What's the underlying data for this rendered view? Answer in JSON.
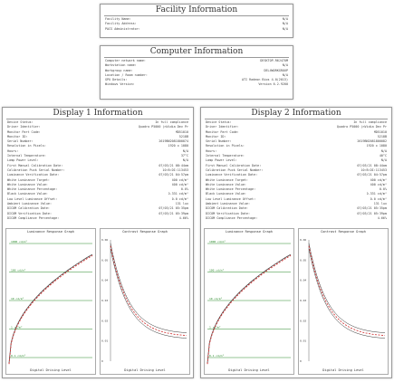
{
  "facility": {
    "title": "Facility Information",
    "rows": [
      {
        "label": "Facility Name:",
        "value": "N/A"
      },
      {
        "label": "Facility Address:",
        "value": "N/A"
      },
      {
        "label": "PACS Administrator:",
        "value": "N/A"
      }
    ]
  },
  "computer": {
    "title": "Computer Information",
    "rows": [
      {
        "label": "Computer network name:",
        "value": "DESKTOP-R6J47OM"
      },
      {
        "label": "Workstation name:",
        "value": "N/A"
      },
      {
        "label": "Workgroup name:",
        "value": "DEL4WORKGROUP"
      },
      {
        "label": "Location / Room number:",
        "value": "N/A"
      },
      {
        "label": "GPU Details:",
        "value": "ATI Radeon Bios 4.0(2013)"
      },
      {
        "label": "Windows Version:",
        "value": "Version 6.2.9200"
      }
    ]
  },
  "display1": {
    "title": "Display 1 Information",
    "rows": [
      {
        "label": "Device Status:",
        "value": "In full compliance"
      },
      {
        "label": "Driver Identifier:",
        "value": "Quadro P5000 (nVidia Dev Pr"
      },
      {
        "label": "Monitor Part Code:",
        "value": "MD51010"
      },
      {
        "label": "Monitor ID:",
        "value": "5218B"
      },
      {
        "label": "Serial Number:",
        "value": "2619BN2081800074"
      },
      {
        "label": "Resolution in Pixels:",
        "value": "1920 x 1080"
      },
      {
        "label": "Hours:",
        "value": "N/A"
      },
      {
        "label": "Internal Temperature:",
        "value": "37°C"
      },
      {
        "label": "Lamp Power Level:",
        "value": "N/A"
      },
      {
        "label": "First Manual Calibration Date:",
        "value": "07/03/21 08:44am"
      },
      {
        "label": "Calibration Puck Serial Number:",
        "value": "10:B:DI:113453"
      },
      {
        "label": "Luminance Verification Date:",
        "value": "07/03/21 04:57pm"
      },
      {
        "label": "White Luminance Target:",
        "value": "400 cd/m²"
      },
      {
        "label": "White Luminance Value:",
        "value": "400 cd/m²"
      },
      {
        "label": "White Luminance Percentage:",
        "value": "0.0%"
      },
      {
        "label": "Black Luminance Value:",
        "value": "0.331 cd/m²"
      },
      {
        "label": "Low Level Luminance Offset:",
        "value": "0.0 cd/m²"
      },
      {
        "label": "Ambient Luminance Value:",
        "value": "131 lux"
      },
      {
        "label": "DICOM Calibration Date:",
        "value": "07/03/21 05:35pm"
      },
      {
        "label": "DICOM Verification Date:",
        "value": "07/03/21 05:39pm"
      },
      {
        "label": "DICOM Compliance Percentage:",
        "value": "4.66%"
      }
    ],
    "lum_graph": {
      "title": "Luminance Response Graph",
      "xlabel": "Digital Driving Level",
      "grid_labels": [
        "1000 cd/m²",
        "100 cd/m²",
        "10 cd/m²",
        "1 cd/m²",
        "0.1 cd/m²"
      ]
    },
    "con_graph": {
      "title": "Contrast Response Graph",
      "xlabel": "Digital Driving Level",
      "y_ticks": [
        "0.06",
        "0.05",
        "0.04",
        "0.03",
        "0.02",
        "0.01",
        "0"
      ]
    }
  },
  "display2": {
    "title": "Display 2 Information",
    "rows": [
      {
        "label": "Device Status:",
        "value": "In full compliance"
      },
      {
        "label": "Driver Identifier:",
        "value": "Quadro P5000 (nVidia Dev Pr"
      },
      {
        "label": "Monitor Part Code:",
        "value": "MD51010"
      },
      {
        "label": "Monitor ID:",
        "value": "5218B"
      },
      {
        "label": "Serial Number:",
        "value": "2619BN2081800082"
      },
      {
        "label": "Resolution in Pixels:",
        "value": "1920 x 1080"
      },
      {
        "label": "Hours:",
        "value": "N/A"
      },
      {
        "label": "Internal Temperature:",
        "value": "40°C"
      },
      {
        "label": "Lamp Power Level:",
        "value": "N/A"
      },
      {
        "label": "First Manual Calibration Date:",
        "value": "07/03/21 08:44am"
      },
      {
        "label": "Calibration Puck Serial Number:",
        "value": "10:B:DI:113453"
      },
      {
        "label": "Luminance Verification Date:",
        "value": "07/03/21 04:57pm"
      },
      {
        "label": "White Luminance Target:",
        "value": "400 cd/m²"
      },
      {
        "label": "White Luminance Value:",
        "value": "400 cd/m²"
      },
      {
        "label": "White Luminance Percentage:",
        "value": "0.0%"
      },
      {
        "label": "Black Luminance Value:",
        "value": "0.331 cd/m²"
      },
      {
        "label": "Low Level Luminance Offset:",
        "value": "0.0 cd/m²"
      },
      {
        "label": "Ambient Luminance Value:",
        "value": "131 lux"
      },
      {
        "label": "DICOM Calibration Date:",
        "value": "07/03/21 05:35pm"
      },
      {
        "label": "DICOM Verification Date:",
        "value": "07/03/21 05:39pm"
      },
      {
        "label": "DICOM Compliance Percentage:",
        "value": "4.66%"
      }
    ],
    "lum_graph": {
      "title": "Luminance Response Graph",
      "xlabel": "Digital Driving Level",
      "grid_labels": [
        "1000 cd/m²",
        "100 cd/m²",
        "10 cd/m²",
        "1 cd/m²",
        "0.1 cd/m²"
      ]
    },
    "con_graph": {
      "title": "Contrast Response Graph",
      "xlabel": "Digital Driving Level",
      "y_ticks": [
        "0.06",
        "0.05",
        "0.04",
        "0.03",
        "0.02",
        "0.01",
        "0"
      ]
    }
  },
  "colors": {
    "grid_green": "#2a8a2a",
    "curve_red": "#d23b3b",
    "curve_dark": "#333333"
  }
}
